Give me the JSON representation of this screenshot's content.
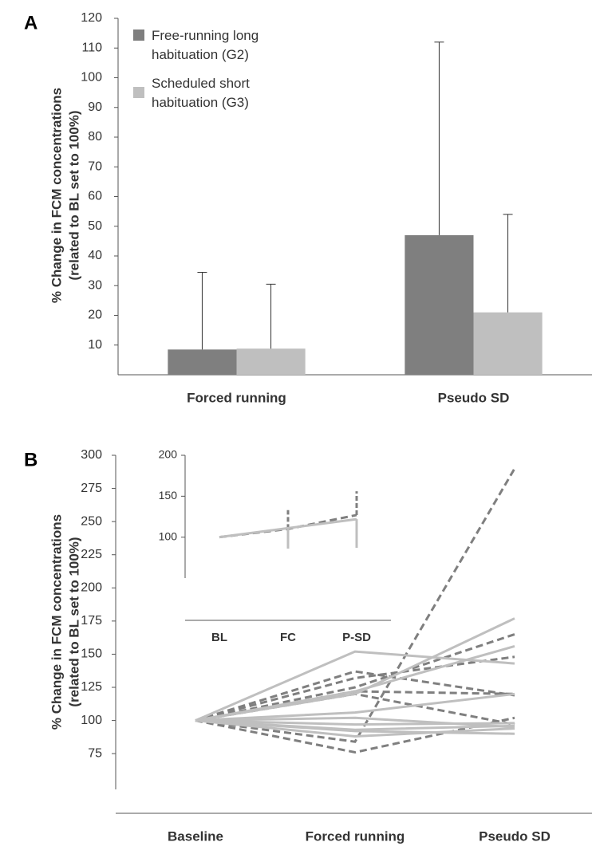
{
  "chart_data": [
    {
      "type": "bar",
      "label": "A",
      "ylabel": [
        "% Change in FCM concentrations",
        "(related to BL set to 100%)"
      ],
      "categories": [
        "Forced running",
        "Pseudo SD"
      ],
      "series": [
        {
          "name": "Free-running long habituation (G2)",
          "color": "#7f7f7f",
          "values": [
            8.5,
            47
          ],
          "errors": [
            26,
            65
          ]
        },
        {
          "name": "Scheduled short habituation (G3)",
          "color": "#bfbfbf",
          "values": [
            8.8,
            21
          ],
          "errors": [
            21.7,
            33
          ]
        }
      ],
      "ylim": [
        0,
        120
      ],
      "yticks": [
        10,
        20,
        30,
        40,
        50,
        60,
        70,
        80,
        90,
        100,
        110,
        120
      ],
      "legend": "top-left"
    },
    {
      "type": "line",
      "label": "B",
      "ylabel": [
        "% Change in FCM concentrations",
        "(related to BL set to 100%)"
      ],
      "categories": [
        "Baseline",
        "Forced running",
        "Pseudo SD"
      ],
      "series": [
        {
          "color": "#7f7f7f",
          "dash": true,
          "values": [
            100,
            84,
            290
          ]
        },
        {
          "color": "#7f7f7f",
          "dash": true,
          "values": [
            100,
            76,
            102
          ]
        },
        {
          "color": "#7f7f7f",
          "dash": true,
          "values": [
            100,
            137,
            119
          ]
        },
        {
          "color": "#7f7f7f",
          "dash": true,
          "values": [
            100,
            132,
            148
          ]
        },
        {
          "color": "#7f7f7f",
          "dash": true,
          "values": [
            100,
            125,
            165
          ]
        },
        {
          "color": "#7f7f7f",
          "dash": true,
          "values": [
            100,
            122,
            120
          ]
        },
        {
          "color": "#7f7f7f",
          "dash": true,
          "values": [
            100,
            120,
            97
          ]
        },
        {
          "color": "#bfbfbf",
          "dash": false,
          "values": [
            100,
            152,
            143
          ]
        },
        {
          "color": "#bfbfbf",
          "dash": false,
          "values": [
            100,
            120,
            177
          ]
        },
        {
          "color": "#bfbfbf",
          "dash": false,
          "values": [
            100,
            122,
            156
          ]
        },
        {
          "color": "#bfbfbf",
          "dash": false,
          "values": [
            100,
            106,
            120
          ]
        },
        {
          "color": "#bfbfbf",
          "dash": false,
          "values": [
            100,
            102,
            95
          ]
        },
        {
          "color": "#bfbfbf",
          "dash": false,
          "values": [
            100,
            93,
            96
          ]
        },
        {
          "color": "#bfbfbf",
          "dash": false,
          "values": [
            100,
            92,
            90
          ]
        },
        {
          "color": "#bfbfbf",
          "dash": false,
          "values": [
            100,
            88,
            94
          ]
        },
        {
          "color": "#bfbfbf",
          "dash": false,
          "values": [
            100,
            97,
            98
          ]
        }
      ],
      "ylim": [
        30,
        300
      ],
      "yticks": [
        75,
        100,
        125,
        150,
        175,
        200,
        225,
        250,
        275,
        300
      ]
    },
    {
      "type": "line",
      "categories": [
        "BL",
        "FC",
        "P-SD"
      ],
      "series": [
        {
          "color": "#7f7f7f",
          "dash": true,
          "values": [
            100,
            110,
            127
          ],
          "errors": [
            null,
            23,
            29
          ],
          "error_direction": "up"
        },
        {
          "color": "#bfbfbf",
          "dash": false,
          "values": [
            100,
            111,
            122
          ],
          "errors": [
            null,
            25,
            35
          ],
          "error_direction": "down"
        }
      ],
      "ylim": [
        50,
        200
      ],
      "yticks": [
        100,
        150,
        200
      ]
    }
  ]
}
